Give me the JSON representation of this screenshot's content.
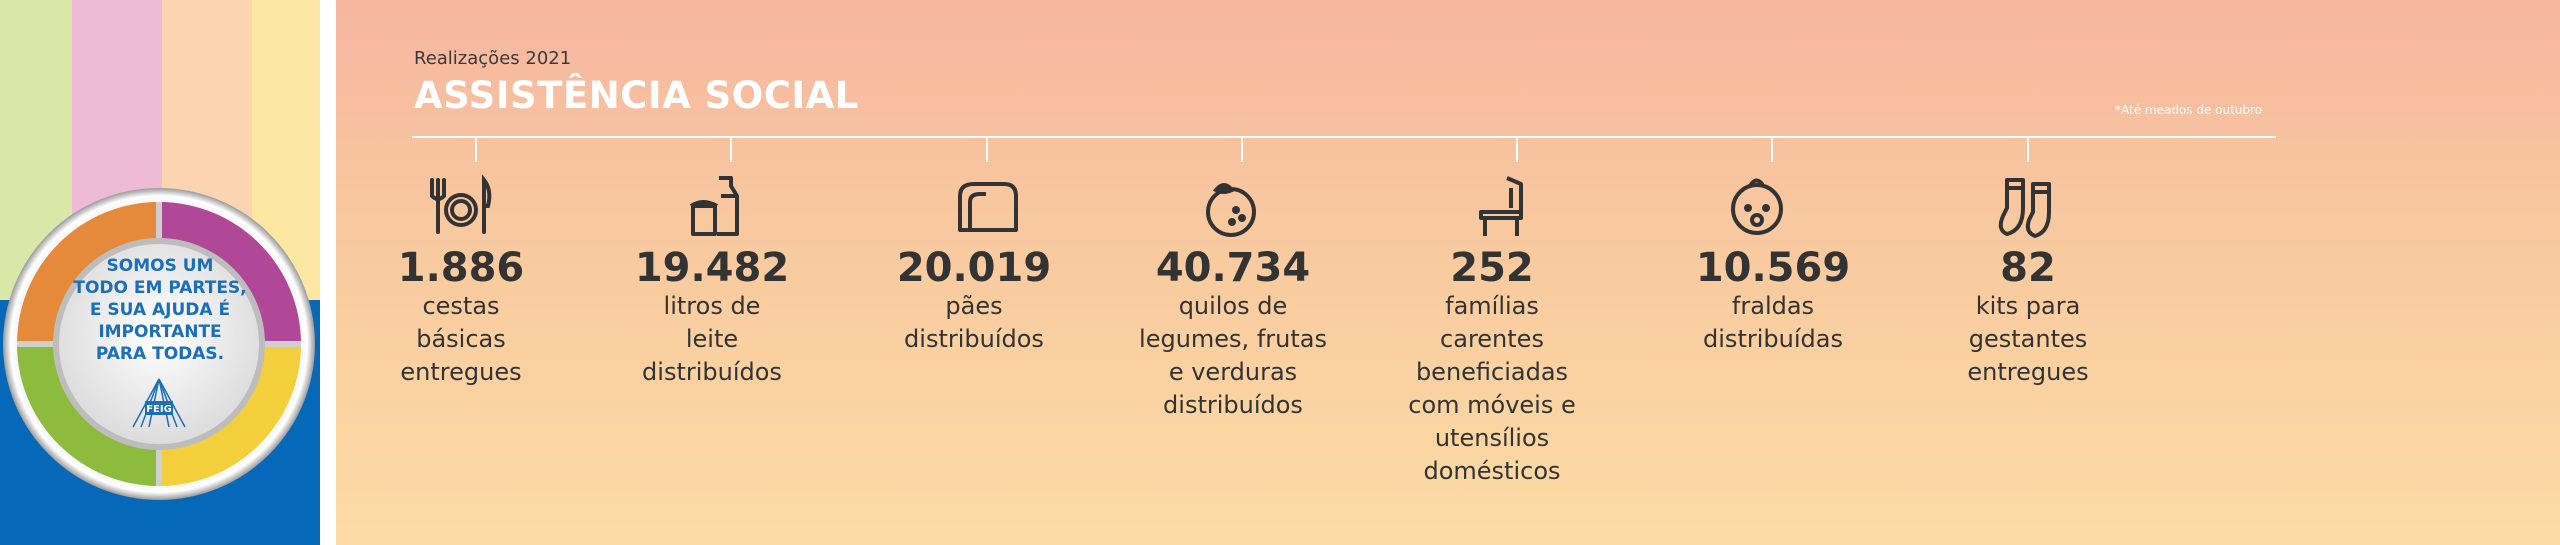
{
  "sidebar": {
    "stripe_colors": [
      "#d9e8a8",
      "#eebbd6",
      "#fbd5b2",
      "#fde7a3"
    ],
    "circle_text": [
      "SOMOS UM",
      "TODO EM PARTES,",
      "E SUA AJUDA É",
      "IMPORTANTE",
      "PARA TODAS."
    ],
    "logo_text": "FEIG",
    "blue_color": "#0668b8"
  },
  "header": {
    "subtitle": "Realizações 2021",
    "title": "ASSISTÊNCIA SOCIAL",
    "note": "*Até meados de outubro"
  },
  "stats": [
    {
      "value": "1.886",
      "label": [
        "cestas",
        "básicas",
        "entregues"
      ],
      "icon": "plate-cutlery-icon"
    },
    {
      "value": "19.482",
      "label": [
        "litros de",
        "leite",
        "distribuídos"
      ],
      "icon": "milk-bottle-icon"
    },
    {
      "value": "20.019",
      "label": [
        "pães",
        "distribuídos"
      ],
      "icon": "bread-icon"
    },
    {
      "value": "40.734",
      "label": [
        "quilos de",
        "legumes, frutas",
        "e verduras",
        "distribuídos"
      ],
      "icon": "orange-fruit-icon"
    },
    {
      "value": "252",
      "label": [
        "famílias",
        "carentes",
        "beneficiadas",
        "com móveis e",
        "utensílios",
        "domésticos"
      ],
      "icon": "chair-icon"
    },
    {
      "value": "10.569",
      "label": [
        "fraldas",
        "distribuídas"
      ],
      "icon": "baby-face-icon"
    },
    {
      "value": "82",
      "label": [
        "kits para",
        "gestantes",
        "entregues"
      ],
      "icon": "socks-icon"
    }
  ]
}
